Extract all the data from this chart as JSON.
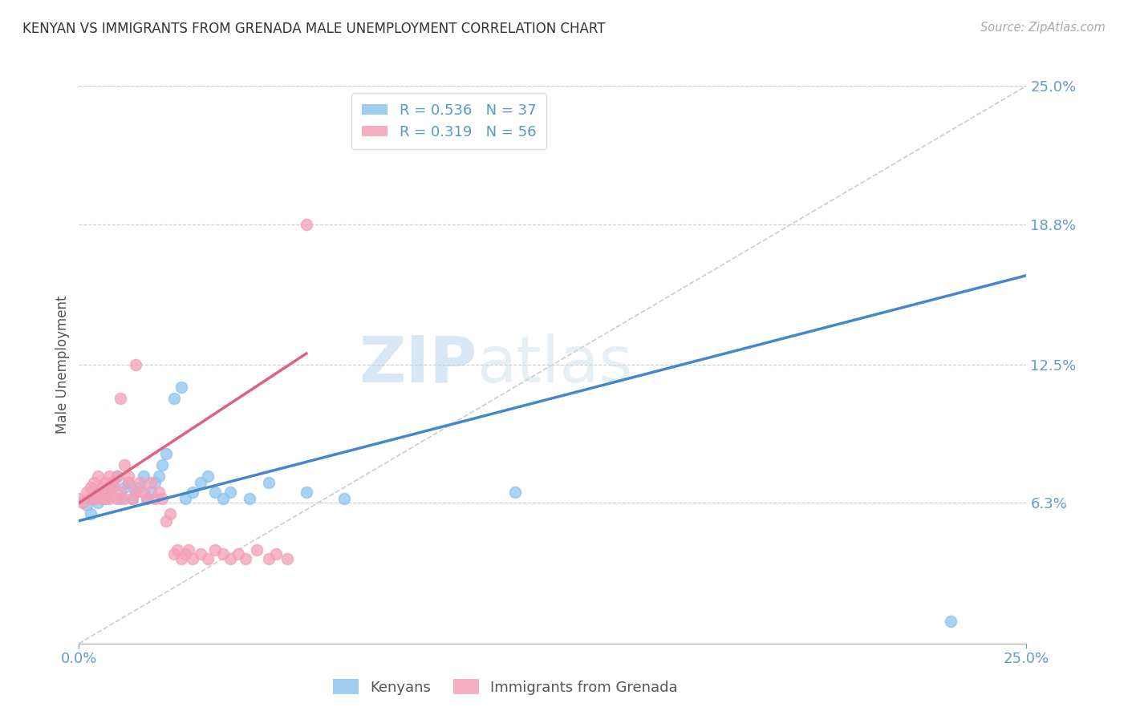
{
  "title": "KENYAN VS IMMIGRANTS FROM GRENADA MALE UNEMPLOYMENT CORRELATION CHART",
  "source": "Source: ZipAtlas.com",
  "ylabel": "Male Unemployment",
  "xlim": [
    0.0,
    0.25
  ],
  "ylim": [
    0.0,
    0.25
  ],
  "x_tick_labels": [
    "0.0%",
    "25.0%"
  ],
  "x_ticks": [
    0.0,
    0.25
  ],
  "y_tick_labels": [
    "6.3%",
    "12.5%",
    "18.8%",
    "25.0%"
  ],
  "y_ticks": [
    0.063,
    0.125,
    0.188,
    0.25
  ],
  "kenyan_color": "#8ec4ef",
  "grenada_color": "#f4a0b8",
  "kenyan_R": 0.536,
  "kenyan_N": 37,
  "grenada_R": 0.319,
  "grenada_N": 56,
  "watermark_zip": "ZIP",
  "watermark_atlas": "atlas",
  "background_color": "#ffffff",
  "kenyan_scatter_x": [
    0.002,
    0.003,
    0.004,
    0.005,
    0.006,
    0.007,
    0.008,
    0.009,
    0.01,
    0.011,
    0.012,
    0.013,
    0.014,
    0.015,
    0.016,
    0.017,
    0.018,
    0.019,
    0.02,
    0.021,
    0.022,
    0.023,
    0.025,
    0.027,
    0.028,
    0.03,
    0.032,
    0.034,
    0.036,
    0.038,
    0.04,
    0.045,
    0.05,
    0.06,
    0.07,
    0.115,
    0.23
  ],
  "kenyan_scatter_y": [
    0.062,
    0.058,
    0.065,
    0.063,
    0.068,
    0.065,
    0.07,
    0.072,
    0.075,
    0.065,
    0.07,
    0.072,
    0.065,
    0.068,
    0.07,
    0.075,
    0.065,
    0.068,
    0.072,
    0.075,
    0.08,
    0.085,
    0.11,
    0.115,
    0.065,
    0.068,
    0.072,
    0.075,
    0.068,
    0.065,
    0.068,
    0.065,
    0.072,
    0.068,
    0.065,
    0.068,
    0.01
  ],
  "grenada_scatter_x": [
    0.0,
    0.001,
    0.002,
    0.003,
    0.003,
    0.004,
    0.004,
    0.005,
    0.005,
    0.006,
    0.006,
    0.007,
    0.007,
    0.008,
    0.008,
    0.008,
    0.009,
    0.009,
    0.01,
    0.01,
    0.011,
    0.011,
    0.012,
    0.012,
    0.013,
    0.013,
    0.014,
    0.015,
    0.015,
    0.016,
    0.017,
    0.018,
    0.019,
    0.02,
    0.021,
    0.022,
    0.023,
    0.024,
    0.025,
    0.026,
    0.027,
    0.028,
    0.029,
    0.03,
    0.032,
    0.034,
    0.036,
    0.038,
    0.04,
    0.042,
    0.044,
    0.047,
    0.05,
    0.052,
    0.055,
    0.06
  ],
  "grenada_scatter_y": [
    0.065,
    0.063,
    0.068,
    0.065,
    0.07,
    0.065,
    0.072,
    0.068,
    0.075,
    0.065,
    0.07,
    0.065,
    0.072,
    0.068,
    0.075,
    0.065,
    0.07,
    0.072,
    0.065,
    0.075,
    0.068,
    0.11,
    0.065,
    0.08,
    0.072,
    0.075,
    0.065,
    0.068,
    0.125,
    0.072,
    0.068,
    0.065,
    0.072,
    0.065,
    0.068,
    0.065,
    0.055,
    0.058,
    0.04,
    0.042,
    0.038,
    0.04,
    0.042,
    0.038,
    0.04,
    0.038,
    0.042,
    0.04,
    0.038,
    0.04,
    0.038,
    0.042,
    0.038,
    0.04,
    0.038,
    0.188
  ],
  "kenyan_trendline_x": [
    0.0,
    0.25
  ],
  "kenyan_trendline_y": [
    0.055,
    0.165
  ],
  "grenada_trendline_x": [
    0.0,
    0.06
  ],
  "grenada_trendline_y": [
    0.063,
    0.13
  ]
}
